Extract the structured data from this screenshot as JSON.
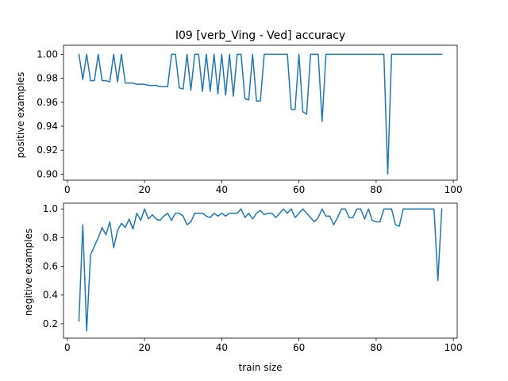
{
  "chart_data": [
    {
      "type": "line",
      "title": "I09 [verb_Ving - Ved] accuracy",
      "xlabel": "",
      "ylabel": "positive examples",
      "xlim": [
        -1,
        101
      ],
      "ylim": [
        0.895,
        1.0075
      ],
      "xticks": [
        0,
        20,
        40,
        60,
        80,
        100
      ],
      "yticks": [
        0.9,
        0.92,
        0.94,
        0.96,
        0.98,
        1.0
      ],
      "ytick_labels": [
        "0.90",
        "0.92",
        "0.94",
        "0.96",
        "0.98",
        "1.00"
      ],
      "grid": false,
      "color": "#1f77b4",
      "series": [
        {
          "x": [
            3,
            4,
            5,
            6,
            7,
            8,
            9,
            10,
            11,
            12,
            13,
            14,
            15,
            16,
            17,
            18,
            19,
            20,
            21,
            22,
            23,
            24,
            25,
            26,
            27,
            28,
            29,
            30,
            31,
            32,
            33,
            34,
            35,
            36,
            37,
            38,
            39,
            40,
            41,
            42,
            43,
            44,
            45,
            46,
            47,
            48,
            49,
            50,
            51,
            52,
            53,
            54,
            55,
            56,
            57,
            58,
            59,
            60,
            61,
            62,
            63,
            64,
            65,
            66,
            67,
            68,
            69,
            70,
            71,
            72,
            73,
            74,
            75,
            76,
            77,
            78,
            79,
            80,
            81,
            82,
            83,
            84,
            85,
            86,
            87,
            88,
            89,
            90,
            91,
            92,
            93,
            94,
            95,
            96,
            97
          ],
          "y": [
            1.0,
            0.979,
            1.0,
            0.978,
            0.978,
            1.0,
            0.978,
            0.978,
            0.977,
            1.0,
            0.977,
            1.0,
            0.976,
            0.976,
            0.976,
            0.975,
            0.975,
            0.975,
            0.974,
            0.974,
            0.974,
            0.973,
            0.973,
            0.973,
            1.0,
            1.0,
            0.972,
            0.971,
            1.0,
            0.97,
            1.0,
            1.0,
            0.969,
            1.0,
            0.969,
            1.0,
            0.967,
            1.0,
            0.966,
            1.0,
            0.965,
            1.0,
            1.0,
            0.963,
            0.962,
            1.0,
            0.961,
            0.961,
            1.0,
            1.0,
            1.0,
            1.0,
            1.0,
            1.0,
            1.0,
            0.954,
            0.954,
            1.0,
            0.952,
            0.95,
            1.0,
            1.0,
            1.0,
            0.944,
            1.0,
            1.0,
            1.0,
            1.0,
            1.0,
            1.0,
            1.0,
            1.0,
            1.0,
            1.0,
            1.0,
            1.0,
            1.0,
            1.0,
            1.0,
            1.0,
            0.9,
            1.0,
            1.0,
            1.0,
            1.0,
            1.0,
            1.0,
            1.0,
            1.0,
            1.0,
            1.0,
            1.0,
            1.0,
            1.0,
            1.0
          ]
        }
      ]
    },
    {
      "type": "line",
      "title": "",
      "xlabel": "train size",
      "ylabel": "negitive examples",
      "xlim": [
        -1,
        101
      ],
      "ylim": [
        0.1,
        1.04
      ],
      "xticks": [
        0,
        20,
        40,
        60,
        80,
        100
      ],
      "yticks": [
        0.2,
        0.4,
        0.6,
        0.8,
        1.0
      ],
      "ytick_labels": [
        "0.2",
        "0.4",
        "0.6",
        "0.8",
        "1.0"
      ],
      "grid": false,
      "color": "#1f77b4",
      "series": [
        {
          "x": [
            3,
            4,
            5,
            6,
            7,
            8,
            9,
            10,
            11,
            12,
            13,
            14,
            15,
            16,
            17,
            18,
            19,
            20,
            21,
            22,
            23,
            24,
            25,
            26,
            27,
            28,
            29,
            30,
            31,
            32,
            33,
            34,
            35,
            36,
            37,
            38,
            39,
            40,
            41,
            42,
            43,
            44,
            45,
            46,
            47,
            48,
            49,
            50,
            51,
            52,
            53,
            54,
            55,
            56,
            57,
            58,
            59,
            60,
            61,
            62,
            63,
            64,
            65,
            66,
            67,
            68,
            69,
            70,
            71,
            72,
            73,
            74,
            75,
            76,
            77,
            78,
            79,
            80,
            81,
            82,
            83,
            84,
            85,
            86,
            87,
            88,
            89,
            90,
            91,
            92,
            93,
            94,
            95,
            96,
            97
          ],
          "y": [
            0.22,
            0.89,
            0.15,
            0.68,
            0.74,
            0.8,
            0.87,
            0.82,
            0.91,
            0.73,
            0.85,
            0.9,
            0.87,
            0.93,
            0.86,
            0.97,
            0.92,
            1.0,
            0.93,
            0.96,
            0.93,
            0.92,
            0.95,
            0.97,
            0.92,
            0.97,
            0.97,
            0.95,
            0.89,
            0.91,
            0.97,
            0.97,
            0.97,
            0.95,
            0.94,
            0.97,
            0.95,
            0.97,
            0.95,
            0.97,
            0.97,
            0.97,
            1.0,
            0.94,
            0.97,
            0.93,
            0.97,
            0.99,
            0.96,
            0.97,
            0.97,
            0.94,
            0.97,
            1.0,
            0.97,
            1.0,
            0.94,
            0.97,
            1.0,
            0.97,
            0.94,
            0.91,
            0.94,
            1.0,
            0.95,
            0.95,
            0.89,
            0.94,
            1.0,
            1.0,
            0.94,
            0.94,
            1.0,
            1.0,
            0.93,
            1.0,
            0.92,
            0.91,
            0.91,
            1.0,
            1.0,
            1.0,
            0.89,
            0.88,
            1.0,
            1.0,
            1.0,
            1.0,
            1.0,
            1.0,
            1.0,
            1.0,
            1.0,
            0.5,
            1.0
          ]
        }
      ]
    }
  ]
}
